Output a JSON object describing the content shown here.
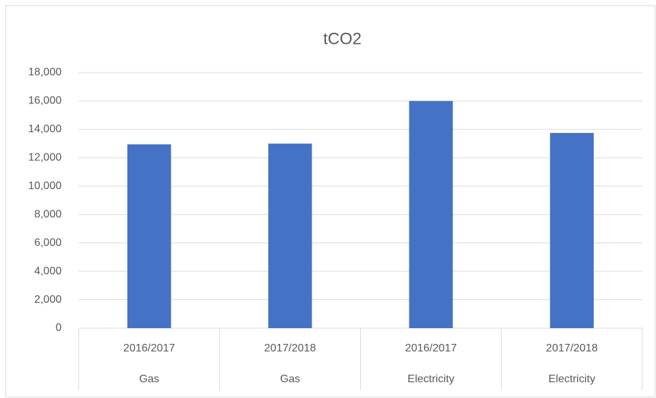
{
  "chart_data": {
    "type": "bar",
    "title": "tCO2",
    "categories": [
      "2016/2017",
      "2017/2018",
      "2016/2017",
      "2017/2018"
    ],
    "groups": [
      "Gas",
      "Gas",
      "Electricity",
      "Electricity"
    ],
    "values": [
      12950,
      13000,
      16000,
      13750
    ],
    "color": "#4472c4",
    "ylim": [
      0,
      18000
    ],
    "yticks": [
      0,
      {
        "value": 2000,
        "label": "2,000"
      },
      {
        "value": 4000,
        "label": "4,000"
      },
      {
        "value": 6000,
        "label": "6,000"
      },
      {
        "value": 8000,
        "label": "8,000"
      },
      {
        "value": 10000,
        "label": "10,000"
      },
      {
        "value": 12000,
        "label": "12,000"
      },
      {
        "value": 14000,
        "label": "14,000"
      },
      {
        "value": 16000,
        "label": "16,000"
      },
      {
        "value": 18000,
        "label": "18,000"
      }
    ],
    "grid": true
  }
}
